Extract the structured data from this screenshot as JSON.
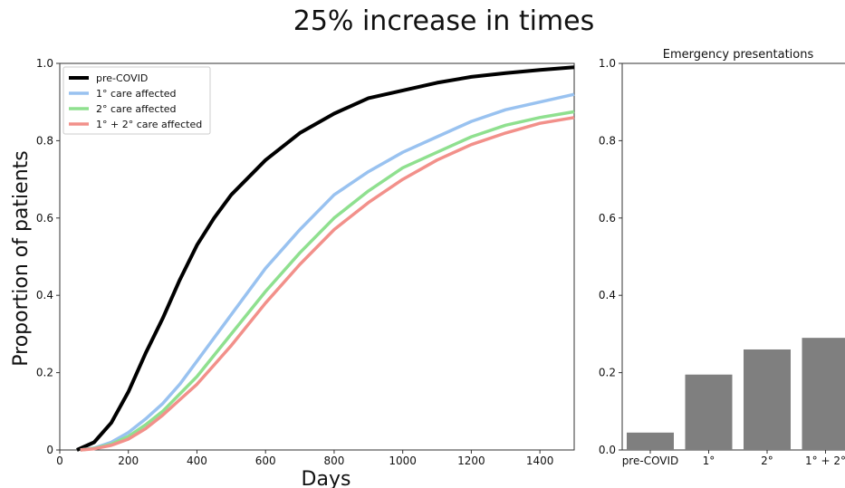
{
  "figure_title": "25% increase in times",
  "chart_data": [
    {
      "type": "line",
      "title": "",
      "xlabel": "Days",
      "ylabel": "Proportion of patients",
      "xlim": [
        0,
        1500
      ],
      "ylim": [
        0,
        1.0
      ],
      "xticks": [
        0,
        200,
        400,
        600,
        800,
        1000,
        1200,
        1400
      ],
      "yticks": [
        0,
        0.2,
        0.4,
        0.6,
        0.8,
        1.0
      ],
      "xtick_labels": [
        "0",
        "200",
        "400",
        "600",
        "800",
        "1000",
        "1200",
        "1400"
      ],
      "ytick_labels": [
        "0",
        "0.2",
        "0.4",
        "0.6",
        "0.8",
        "1.0"
      ],
      "legend_position": "top-left",
      "series": [
        {
          "name": "pre-COVID",
          "color": "#000000",
          "x": [
            50,
            100,
            150,
            200,
            250,
            300,
            350,
            400,
            450,
            500,
            600,
            700,
            800,
            900,
            1000,
            1100,
            1200,
            1300,
            1400,
            1500
          ],
          "y": [
            0,
            0.02,
            0.07,
            0.15,
            0.25,
            0.34,
            0.44,
            0.53,
            0.6,
            0.66,
            0.75,
            0.82,
            0.87,
            0.91,
            0.93,
            0.95,
            0.965,
            0.975,
            0.983,
            0.99
          ]
        },
        {
          "name": "1° care affected",
          "color": "#99c2f0",
          "x": [
            60,
            100,
            150,
            200,
            250,
            300,
            350,
            400,
            450,
            500,
            600,
            700,
            800,
            900,
            1000,
            1100,
            1200,
            1300,
            1400,
            1500
          ],
          "y": [
            0,
            0.005,
            0.02,
            0.045,
            0.08,
            0.12,
            0.17,
            0.23,
            0.29,
            0.35,
            0.47,
            0.57,
            0.66,
            0.72,
            0.77,
            0.81,
            0.85,
            0.88,
            0.9,
            0.92
          ]
        },
        {
          "name": "2° care affected",
          "color": "#8fe08f",
          "x": [
            60,
            100,
            150,
            200,
            250,
            300,
            350,
            400,
            450,
            500,
            600,
            700,
            800,
            900,
            1000,
            1100,
            1200,
            1300,
            1400,
            1500
          ],
          "y": [
            0,
            0.004,
            0.015,
            0.035,
            0.065,
            0.1,
            0.145,
            0.19,
            0.245,
            0.3,
            0.41,
            0.51,
            0.6,
            0.67,
            0.73,
            0.77,
            0.81,
            0.84,
            0.86,
            0.875
          ]
        },
        {
          "name": "1° + 2° care affected",
          "color": "#f2908a",
          "x": [
            60,
            100,
            150,
            200,
            250,
            300,
            350,
            400,
            450,
            500,
            600,
            700,
            800,
            900,
            1000,
            1100,
            1200,
            1300,
            1400,
            1500
          ],
          "y": [
            0,
            0.003,
            0.012,
            0.028,
            0.055,
            0.09,
            0.13,
            0.17,
            0.22,
            0.27,
            0.38,
            0.48,
            0.57,
            0.64,
            0.7,
            0.75,
            0.79,
            0.82,
            0.845,
            0.86
          ]
        }
      ]
    },
    {
      "type": "bar",
      "title": "Emergency presentations",
      "categories": [
        "pre-COVID",
        "1°",
        "2°",
        "1° + 2°"
      ],
      "values": [
        0.045,
        0.195,
        0.26,
        0.29
      ],
      "color": "#7f7f7f",
      "ylim": [
        0,
        1.0
      ],
      "yticks": [
        0,
        0.2,
        0.4,
        0.6,
        0.8,
        1.0
      ],
      "ytick_labels": [
        "0.0",
        "0.2",
        "0.4",
        "0.6",
        "0.8",
        "1.0"
      ]
    }
  ]
}
